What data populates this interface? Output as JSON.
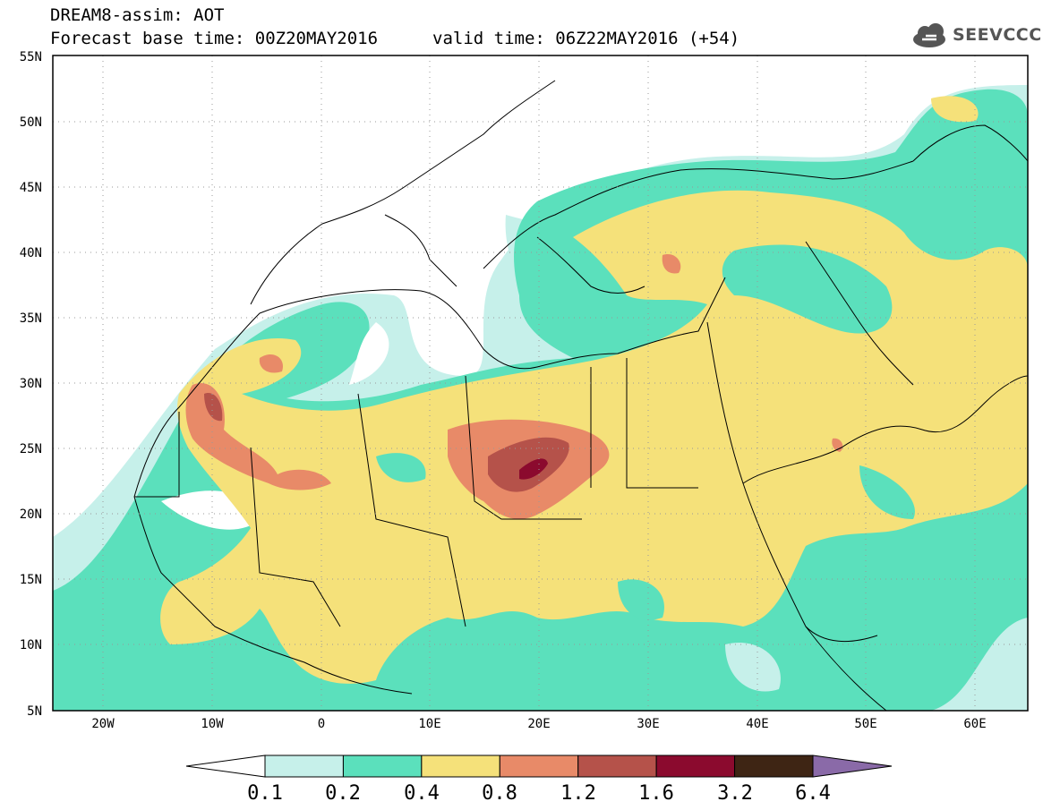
{
  "header": {
    "line1": "DREAM8-assim: AOT",
    "line2": "Forecast base time: 00Z20MAY2016",
    "valid": "valid time: 06Z22MAY2016 (+54)"
  },
  "logo": {
    "text": "SEEVCCC",
    "icon": "cloud-icon",
    "color": "#555555"
  },
  "map": {
    "lat_labels": [
      "55N",
      "50N",
      "45N",
      "40N",
      "35N",
      "30N",
      "25N",
      "20N",
      "15N",
      "10N",
      "5N"
    ],
    "lon_labels": [
      "20W",
      "10W",
      "0",
      "10E",
      "20E",
      "30E",
      "40E",
      "50E",
      "60E"
    ],
    "lat_range": [
      5,
      55
    ],
    "lon_range": [
      -25,
      65
    ]
  },
  "colorbar": {
    "thresholds": [
      "0.1",
      "0.2",
      "0.4",
      "0.8",
      "1.2",
      "1.6",
      "3.2",
      "6.4"
    ],
    "colors": [
      "#c6f0ea",
      "#5be0bc",
      "#f5e17a",
      "#e88a68",
      "#b5524a",
      "#8b0a2e",
      "#3e2514",
      "#8a6aa8"
    ],
    "under_color": "#ffffff"
  }
}
